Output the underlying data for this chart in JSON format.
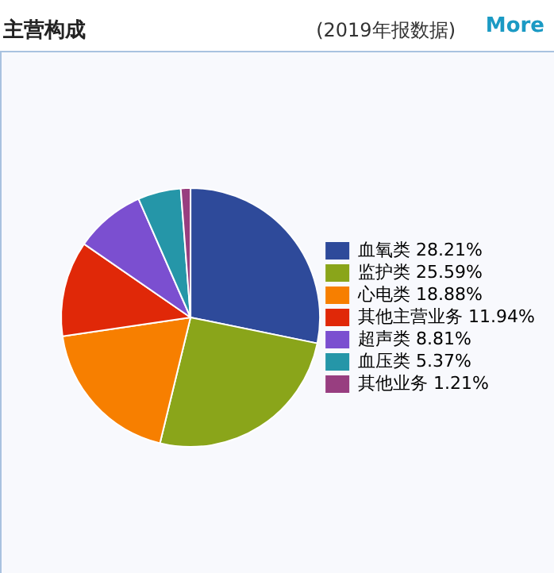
{
  "chart_data": {
    "type": "pie",
    "title": "主营构成",
    "subtitle": "(2019年报数据)",
    "annotations": [
      "More"
    ],
    "categories": [
      "血氧类",
      "监护类",
      "心电类",
      "其他主营业务",
      "超声类",
      "血压类",
      "其他业务"
    ],
    "values": [
      28.21,
      25.59,
      18.88,
      11.94,
      8.81,
      5.37,
      1.21
    ],
    "value_labels": [
      "28.21%",
      "25.59%",
      "18.88%",
      "11.94%",
      "8.81%",
      "5.37%",
      "1.21%"
    ],
    "colors": [
      "#2e4a9a",
      "#8aa51a",
      "#f77f00",
      "#e02808",
      "#7b4fd0",
      "#2596a8",
      "#983e80"
    ],
    "legend": "right"
  }
}
